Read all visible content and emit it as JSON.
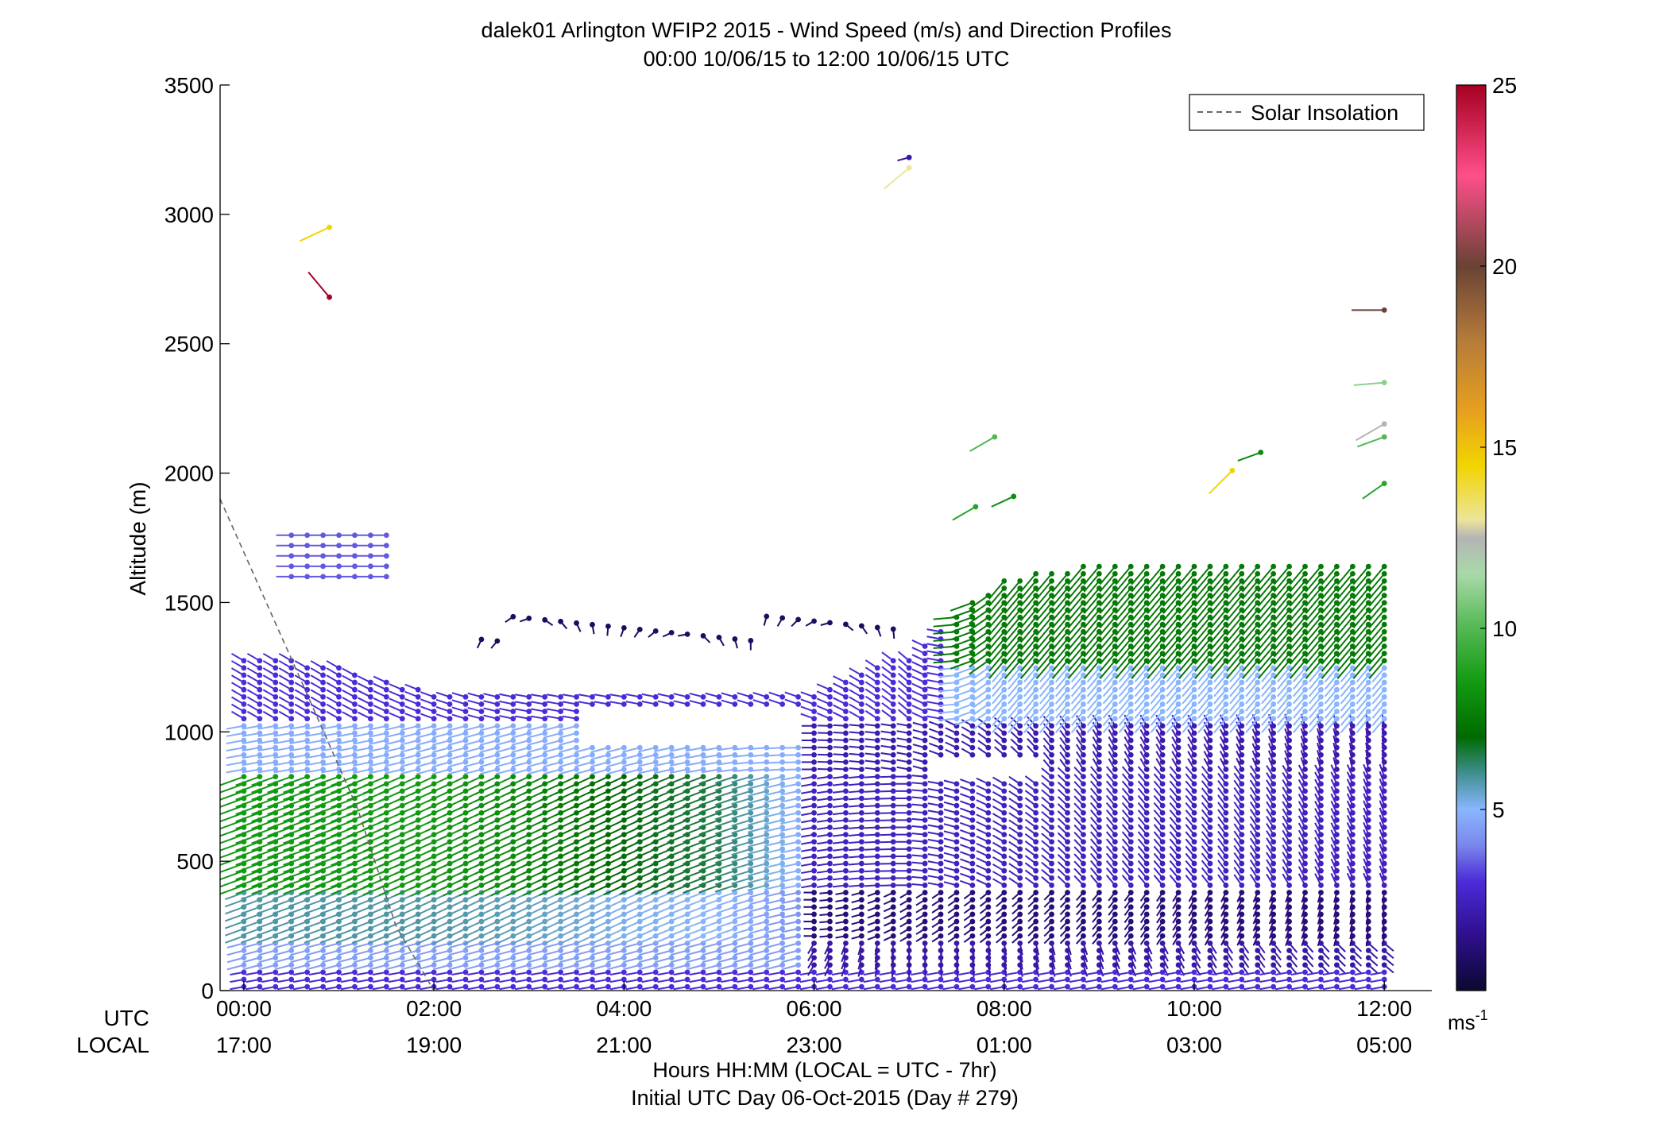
{
  "chart_data": {
    "type": "scatter",
    "title": "dalek01 Arlington WFIP2 2015 - Wind Speed (m/s) and Direction Profiles",
    "subtitle": "00:00 10/06/15 to 12:00 10/06/15  UTC",
    "ylabel": "Altitude (m)",
    "xlabel": "Hours HH:MM  (LOCAL = UTC - 7hr)",
    "xlabel2": "Initial UTC Day 06-Oct-2015 (Day # 279)",
    "row_label_utc": "UTC",
    "row_label_local": "LOCAL",
    "xlim": [
      -0.25,
      12.5
    ],
    "ylim": [
      0,
      3500
    ],
    "x_ticks": [
      0,
      2,
      4,
      6,
      8,
      10,
      12
    ],
    "x_tick_labels_utc": [
      "00:00",
      "02:00",
      "04:00",
      "06:00",
      "08:00",
      "10:00",
      "12:00"
    ],
    "x_tick_labels_local": [
      "17:00",
      "19:00",
      "21:00",
      "23:00",
      "01:00",
      "03:00",
      "05:00"
    ],
    "y_ticks": [
      0,
      500,
      1000,
      1500,
      2000,
      2500,
      3000,
      3500
    ],
    "y_tick_labels": [
      "0",
      "500",
      "1000",
      "1500",
      "2000",
      "2500",
      "3000",
      "3500"
    ],
    "grid": false,
    "legend": {
      "position": "top-right",
      "entries": [
        "Solar Insolation"
      ]
    },
    "colorbar": {
      "label": "ms",
      "label_superscript": "-1",
      "range": [
        0,
        25
      ],
      "ticks": [
        5,
        10,
        15,
        20,
        25
      ],
      "tick_labels": [
        "5",
        "10",
        "15",
        "20",
        "25"
      ],
      "stops": [
        {
          "v": 0,
          "c": "#0b0930"
        },
        {
          "v": 1.5,
          "c": "#2e0f8c"
        },
        {
          "v": 3,
          "c": "#4b2bd8"
        },
        {
          "v": 4,
          "c": "#7a86ea"
        },
        {
          "v": 5,
          "c": "#8ab6ff"
        },
        {
          "v": 6,
          "c": "#3f8f8f"
        },
        {
          "v": 7,
          "c": "#006a00"
        },
        {
          "v": 8.5,
          "c": "#129a12"
        },
        {
          "v": 10,
          "c": "#53b853"
        },
        {
          "v": 11.5,
          "c": "#a9d9a9"
        },
        {
          "v": 12.5,
          "c": "#b4b4b4"
        },
        {
          "v": 13,
          "c": "#ece59a"
        },
        {
          "v": 14.5,
          "c": "#f2d400"
        },
        {
          "v": 16,
          "c": "#e7a01f"
        },
        {
          "v": 18,
          "c": "#b47a3a"
        },
        {
          "v": 20,
          "c": "#6a4235"
        },
        {
          "v": 22.5,
          "c": "#ff4f8a"
        },
        {
          "v": 25,
          "c": "#a50021"
        }
      ]
    },
    "solar_insolation_line": {
      "name": "Solar Insolation",
      "x": [
        -0.25,
        0.6,
        1.2,
        1.6,
        2.0
      ],
      "y": [
        1900,
        1200,
        700,
        250,
        0
      ],
      "style": "dashed",
      "color": "#666666"
    },
    "wind_barbs": {
      "encoding": "each entry: [time_utc_hours, altitude_m, speed_ms, direction_deg]",
      "profiles": [
        {
          "t": 0.0,
          "z_top": 1300,
          "lowjet_speed": 8.5,
          "dir_low": 250,
          "dir_mid": 250,
          "dir_high": 300
        },
        {
          "t": 1.0,
          "z_top": 1250,
          "lowjet_speed": 8.5,
          "dir_low": 250,
          "dir_mid": 250,
          "dir_high": 300
        },
        {
          "t": 2.0,
          "z_top": 1150,
          "lowjet_speed": 8.5,
          "dir_low": 250,
          "dir_mid": 245,
          "dir_high": 290
        },
        {
          "t": 3.0,
          "z_top": 1150,
          "lowjet_speed": 8.0,
          "dir_low": 245,
          "dir_mid": 245,
          "dir_high": 280
        },
        {
          "t": 4.0,
          "z_top": 1150,
          "lowjet_speed": 7.0,
          "dir_low": 245,
          "dir_mid": 245,
          "dir_high": 280
        },
        {
          "t": 5.0,
          "z_top": 1150,
          "lowjet_speed": 6.5,
          "dir_low": 240,
          "dir_mid": 250,
          "dir_high": 285
        },
        {
          "t": 6.0,
          "z_top": 1150,
          "lowjet_speed": 4.5,
          "dir_low": 210,
          "dir_mid": 260,
          "dir_high": 290
        },
        {
          "t": 7.0,
          "z_top": 1300,
          "lowjet_speed": 4.0,
          "dir_low": 180,
          "dir_mid": 270,
          "dir_high": 310
        },
        {
          "t": 8.0,
          "z_top": 1600,
          "lowjet_speed": 3.5,
          "dir_low": 170,
          "dir_mid": 300,
          "dir_high": 220
        },
        {
          "t": 9.0,
          "z_top": 1650,
          "lowjet_speed": 3.0,
          "dir_low": 160,
          "dir_mid": 320,
          "dir_high": 220
        },
        {
          "t": 10.0,
          "z_top": 1650,
          "lowjet_speed": 3.0,
          "dir_low": 150,
          "dir_mid": 320,
          "dir_high": 220
        },
        {
          "t": 11.0,
          "z_top": 1650,
          "lowjet_speed": 3.0,
          "dir_low": 140,
          "dir_mid": 330,
          "dir_high": 220
        },
        {
          "t": 12.0,
          "z_top": 1650,
          "lowjet_speed": 2.5,
          "dir_low": 130,
          "dir_mid": 340,
          "dir_high": 220
        }
      ],
      "isolated": [
        [
          0.9,
          2680,
          25,
          320
        ],
        [
          0.9,
          2950,
          14.5,
          245
        ],
        [
          7.0,
          3220,
          2,
          255
        ],
        [
          7.0,
          3180,
          13,
          230
        ],
        [
          7.7,
          1870,
          9,
          240
        ],
        [
          8.1,
          1910,
          8,
          245
        ],
        [
          7.9,
          2140,
          10,
          240
        ],
        [
          10.4,
          2010,
          14.5,
          225
        ],
        [
          10.7,
          2080,
          8,
          250
        ],
        [
          12.0,
          2630,
          20,
          270
        ],
        [
          12.0,
          2350,
          11,
          265
        ],
        [
          12.0,
          2190,
          12.5,
          240
        ],
        [
          12.0,
          2140,
          10,
          250
        ],
        [
          12.0,
          1960,
          9,
          235
        ]
      ]
    }
  }
}
